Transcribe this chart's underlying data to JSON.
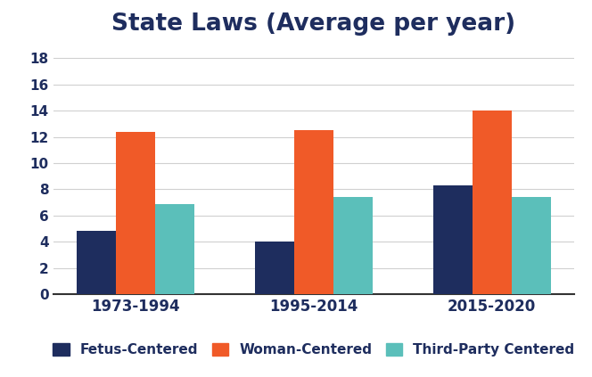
{
  "title": "State Laws (Average per year)",
  "categories": [
    "1973-1994",
    "1995-2014",
    "2015-2020"
  ],
  "series": {
    "Fetus-Centered": [
      4.8,
      4.0,
      8.3
    ],
    "Woman-Centered": [
      12.4,
      12.5,
      14.0
    ],
    "Third-Party Centered": [
      6.9,
      7.4,
      7.4
    ]
  },
  "colors": {
    "Fetus-Centered": "#1e2d5e",
    "Woman-Centered": "#f05a28",
    "Third-Party Centered": "#5bbfba"
  },
  "ylim": [
    0,
    19
  ],
  "yticks": [
    0,
    2,
    4,
    6,
    8,
    10,
    12,
    14,
    16,
    18
  ],
  "title_color": "#1e2d5e",
  "title_fontsize": 19,
  "xtick_fontsize": 12,
  "ytick_fontsize": 11,
  "background_color": "#ffffff",
  "grid_color": "#d0d0d0",
  "bar_width": 0.22,
  "legend_fontsize": 11
}
